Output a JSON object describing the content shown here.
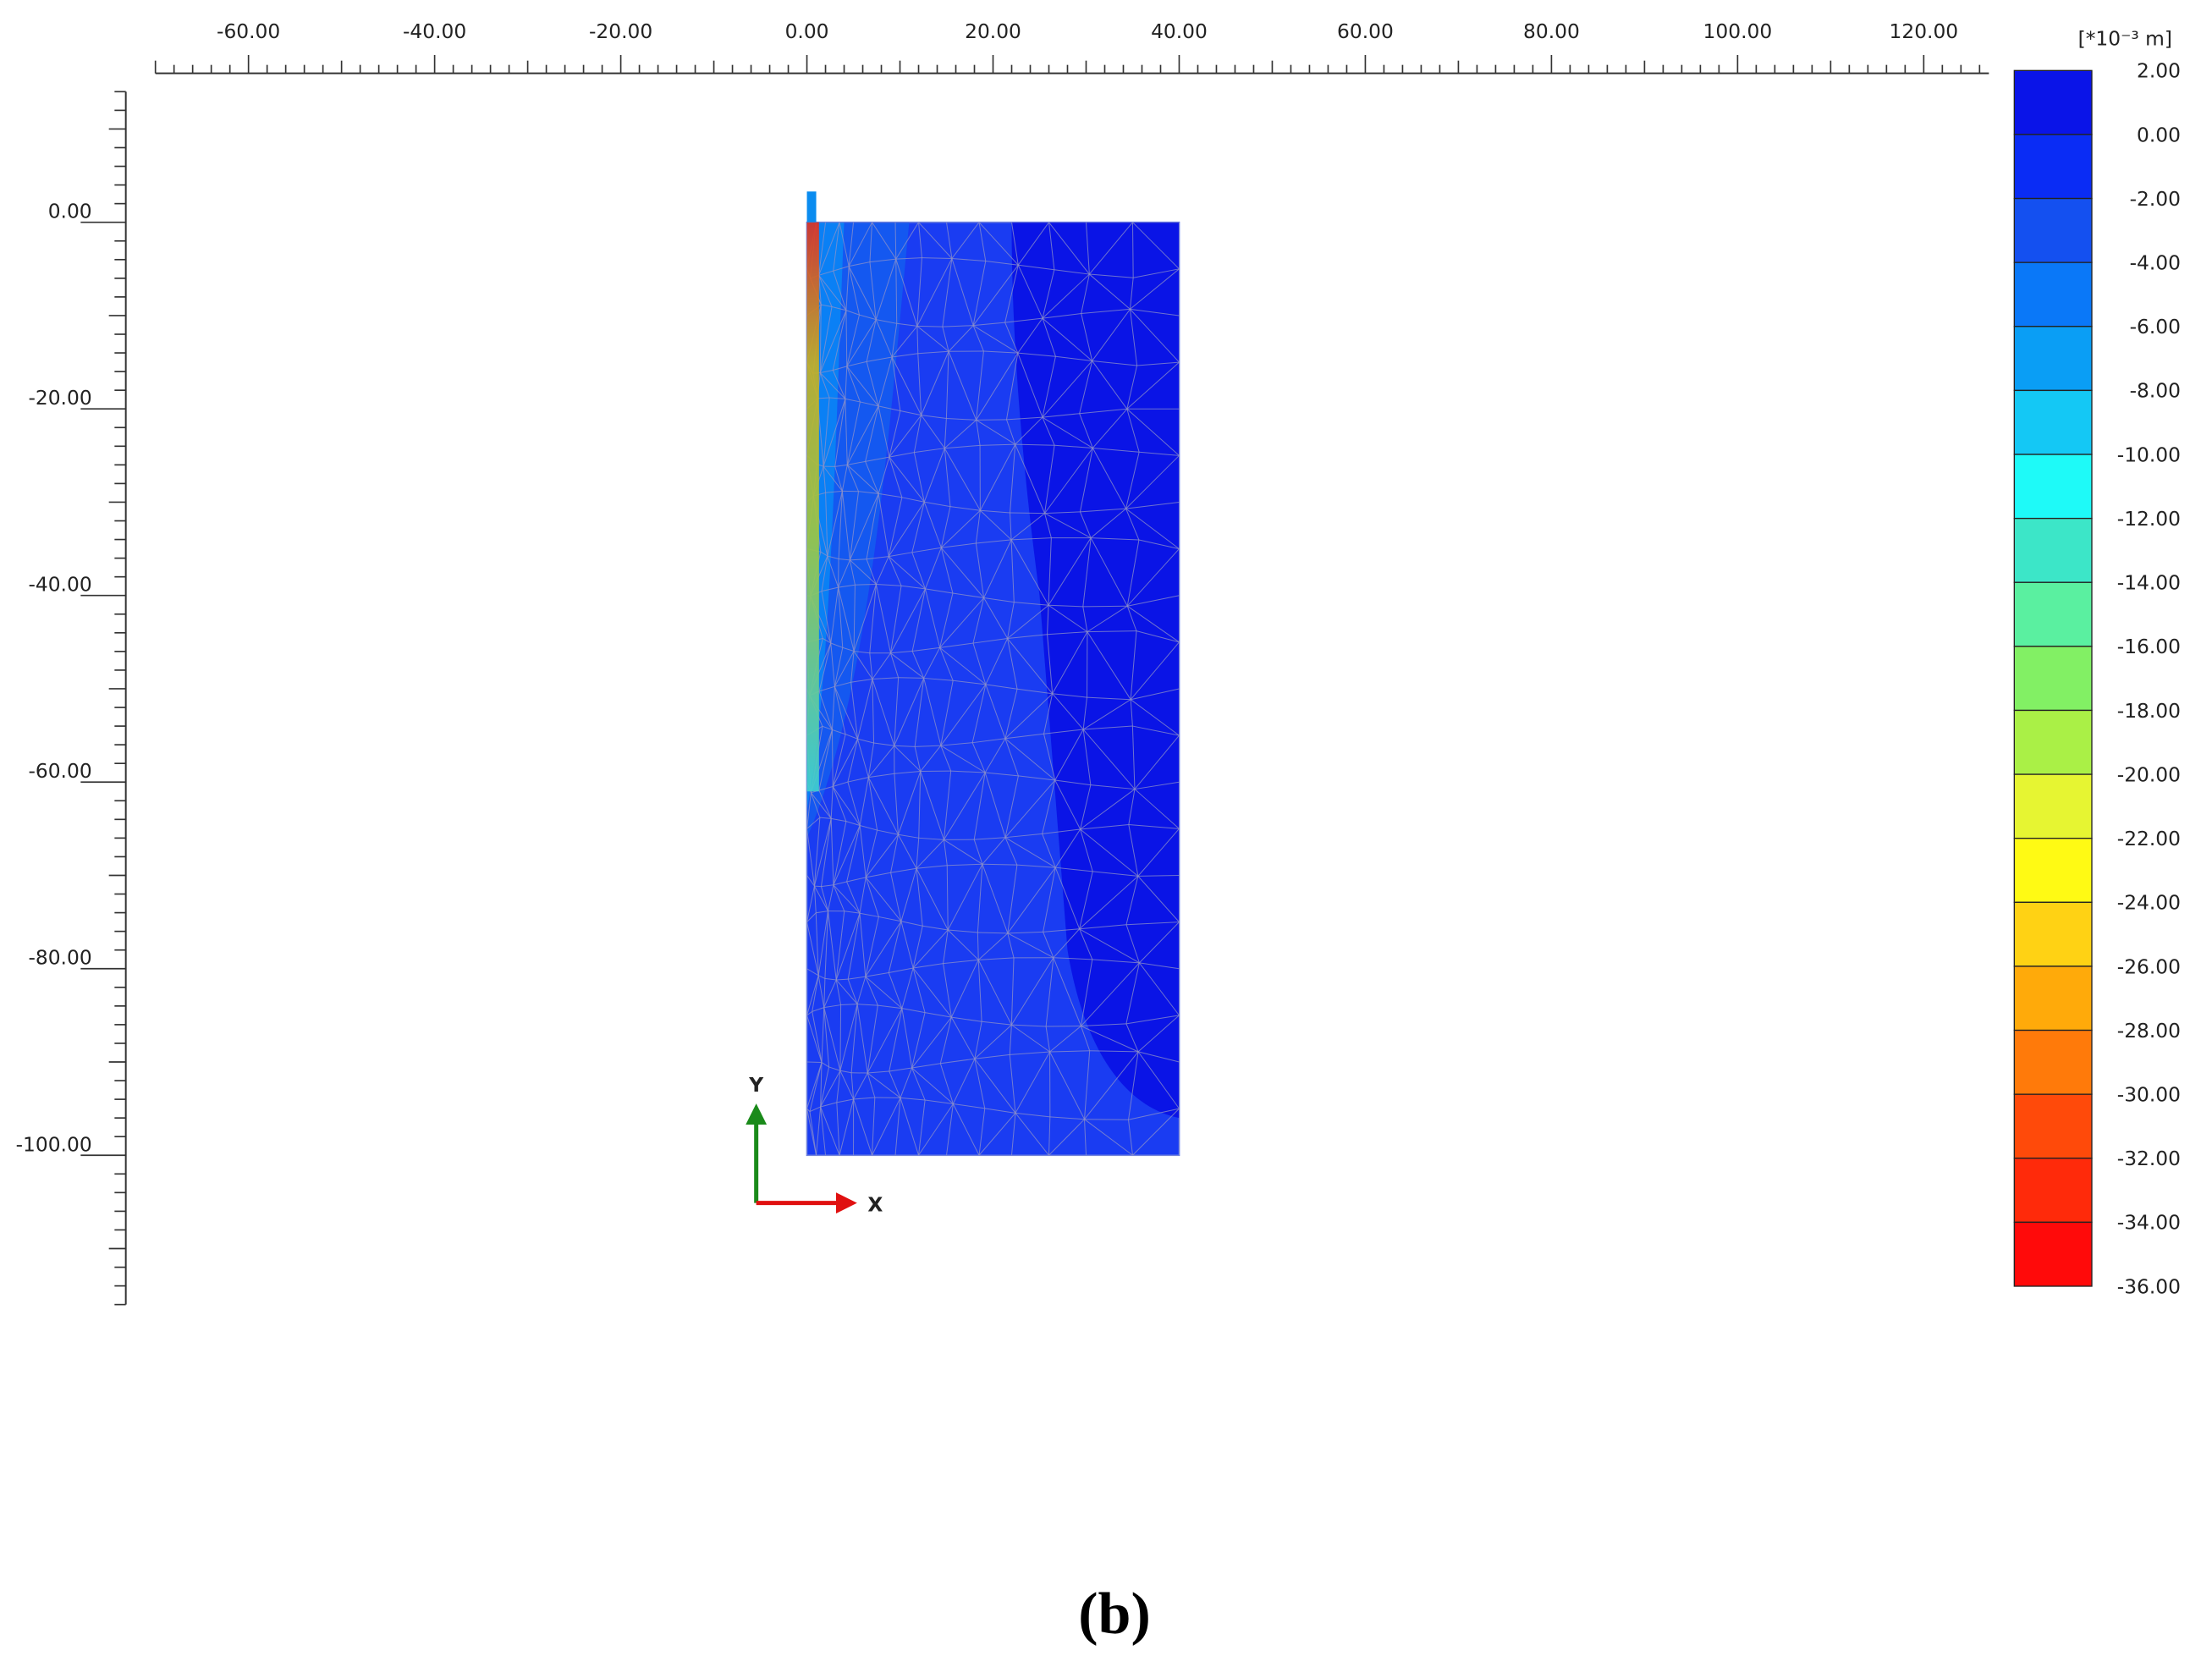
{
  "x_axis": {
    "range": [
      -70,
      127
    ],
    "minor_step": 2,
    "ticks": [
      {
        "value": -60,
        "label": "-60.00"
      },
      {
        "value": -40,
        "label": "-40.00"
      },
      {
        "value": -20,
        "label": "-20.00"
      },
      {
        "value": 0,
        "label": "0.00"
      },
      {
        "value": 20,
        "label": "20.00"
      },
      {
        "value": 40,
        "label": "40.00"
      },
      {
        "value": 60,
        "label": "60.00"
      },
      {
        "value": 80,
        "label": "80.00"
      },
      {
        "value": 100,
        "label": "100.00"
      },
      {
        "value": 120,
        "label": "120.00"
      }
    ]
  },
  "y_axis": {
    "range": [
      -116,
      14
    ],
    "minor_step": 2,
    "ticks": [
      {
        "value": 0,
        "label": "0.00"
      },
      {
        "value": -20,
        "label": "-20.00"
      },
      {
        "value": -40,
        "label": "-40.00"
      },
      {
        "value": -60,
        "label": "-60.00"
      },
      {
        "value": -80,
        "label": "-80.00"
      },
      {
        "value": -100,
        "label": "-100.00"
      }
    ]
  },
  "colorbar": {
    "unit": "[*10⁻³ m]",
    "levels": [
      {
        "value": 2,
        "label": "2.00"
      },
      {
        "value": 0,
        "label": "0.00"
      },
      {
        "value": -2,
        "label": "-2.00"
      },
      {
        "value": -4,
        "label": "-4.00"
      },
      {
        "value": -6,
        "label": "-6.00"
      },
      {
        "value": -8,
        "label": "-8.00"
      },
      {
        "value": -10,
        "label": "-10.00"
      },
      {
        "value": -12,
        "label": "-12.00"
      },
      {
        "value": -14,
        "label": "-14.00"
      },
      {
        "value": -16,
        "label": "-16.00"
      },
      {
        "value": -18,
        "label": "-18.00"
      },
      {
        "value": -20,
        "label": "-20.00"
      },
      {
        "value": -22,
        "label": "-22.00"
      },
      {
        "value": -24,
        "label": "-24.00"
      },
      {
        "value": -26,
        "label": "-26.00"
      },
      {
        "value": -28,
        "label": "-28.00"
      },
      {
        "value": -30,
        "label": "-30.00"
      },
      {
        "value": -32,
        "label": "-32.00"
      },
      {
        "value": -34,
        "label": "-34.00"
      },
      {
        "value": -36,
        "label": "-36.00"
      }
    ],
    "colors": [
      "#0a14e8",
      "#0a2cf5",
      "#1450f0",
      "#0a78f8",
      "#0a9ef5",
      "#14c8f5",
      "#1efaf8",
      "#3ce6c8",
      "#5af0a0",
      "#82f064",
      "#aaf046",
      "#e6f532",
      "#fffa14",
      "#ffd214",
      "#ffaa0a",
      "#ff7a0a",
      "#ff4a0a",
      "#ff2a0a",
      "#ff0a0a"
    ]
  },
  "axis_indicator": {
    "y_label": "Y",
    "x_label": "X"
  },
  "caption": "(b)"
}
